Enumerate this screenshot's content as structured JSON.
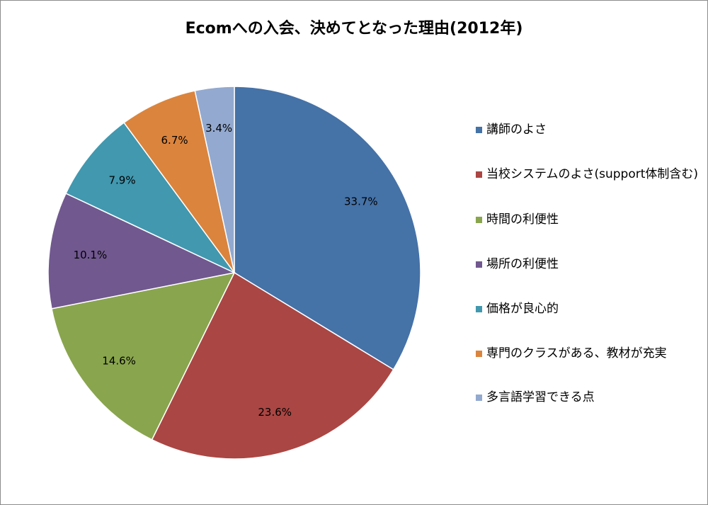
{
  "chart_data": {
    "type": "pie",
    "title": "Ecomへの入会、決めてとなった理由(2012年)",
    "categories": [
      "講師のよさ",
      "当校システムのよさ(support体制含む)",
      "時間の利便性",
      "場所の利便性",
      "価格が良心的",
      "専門のクラスがある、教材が充実",
      "多言語学習できる点"
    ],
    "values": [
      33.7,
      23.6,
      14.6,
      10.1,
      7.9,
      6.7,
      3.4
    ],
    "labels": [
      "33.7%",
      "23.6%",
      "14.6%",
      "10.1%",
      "7.9%",
      "6.7%",
      "3.4%"
    ],
    "colors": [
      "#4572a7",
      "#aa4643",
      "#89a54e",
      "#71588f",
      "#4198af",
      "#db843d",
      "#93a9cf"
    ],
    "legend_position": "right",
    "start_angle": "12 o'clock",
    "direction": "clockwise"
  }
}
